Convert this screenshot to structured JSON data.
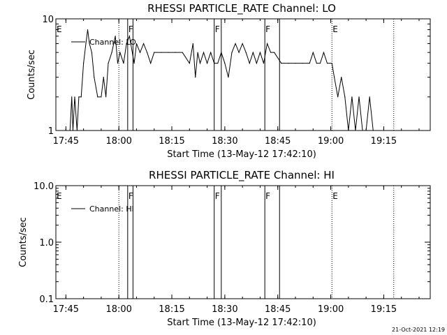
{
  "footer_timestamp": "21-Oct-2021 12:19",
  "chart_data": [
    {
      "type": "line",
      "title": "RHESSI PARTICLE_RATE Channel: LO",
      "xlabel": "Start Time (13-May-12 17:42:10)",
      "ylabel": "Counts/sec",
      "x_range": [
        "17:42:10",
        "19:28:10"
      ],
      "x_ticks": [
        "17:45",
        "18:00",
        "18:15",
        "18:30",
        "18:45",
        "19:00",
        "19:15"
      ],
      "y_scale": "log",
      "y_range": [
        1,
        10
      ],
      "y_ticks": [
        "1",
        "10"
      ],
      "legend": {
        "label": "Channel: LO",
        "placement": "top-left"
      },
      "flag_labels": [
        {
          "text": "E",
          "time": "17:42:10"
        },
        {
          "text": "F",
          "time": "18:02:30"
        },
        {
          "text": "F",
          "time": "18:27:00"
        },
        {
          "text": "F",
          "time": "18:41:20"
        },
        {
          "text": "E",
          "time": "19:00:20"
        }
      ],
      "solid_markers": [
        "18:02:30",
        "18:04:00",
        "18:27:00",
        "18:29:00",
        "18:41:20",
        "18:45:30"
      ],
      "dotted_markers": [
        "18:00:00",
        "19:00:20",
        "19:17:50"
      ],
      "series": [
        {
          "values": [
            [
              "17:46:10",
              1
            ],
            [
              "17:46:40",
              2
            ],
            [
              "17:47:00",
              1
            ],
            [
              "17:47:30",
              2
            ],
            [
              "17:48:10",
              1
            ],
            [
              "17:48:40",
              2
            ],
            [
              "17:49:20",
              2
            ],
            [
              "17:50:00",
              4
            ],
            [
              "17:50:40",
              6
            ],
            [
              "17:51:10",
              8
            ],
            [
              "17:51:40",
              6
            ],
            [
              "17:52:20",
              5
            ],
            [
              "17:53:00",
              3
            ],
            [
              "17:54:00",
              2
            ],
            [
              "17:55:00",
              2
            ],
            [
              "17:55:40",
              3
            ],
            [
              "17:56:20",
              2
            ],
            [
              "17:57:00",
              4
            ],
            [
              "17:58:00",
              5
            ],
            [
              "17:59:00",
              7
            ],
            [
              "17:59:40",
              4
            ],
            [
              "18:00:20",
              5
            ],
            [
              "18:01:20",
              4
            ],
            [
              "18:02:10",
              6
            ],
            [
              "18:03:00",
              7
            ],
            [
              "18:04:20",
              4
            ],
            [
              "18:05:00",
              6
            ],
            [
              "18:06:00",
              5
            ],
            [
              "18:07:00",
              6
            ],
            [
              "18:08:00",
              5
            ],
            [
              "18:09:00",
              4
            ],
            [
              "18:10:00",
              5
            ],
            [
              "18:12:00",
              5
            ],
            [
              "18:14:00",
              5
            ],
            [
              "18:16:00",
              5
            ],
            [
              "18:18:00",
              5
            ],
            [
              "18:20:00",
              4
            ],
            [
              "18:21:00",
              6
            ],
            [
              "18:21:40",
              3
            ],
            [
              "18:22:20",
              5
            ],
            [
              "18:23:00",
              4
            ],
            [
              "18:24:00",
              5
            ],
            [
              "18:25:00",
              4
            ],
            [
              "18:26:00",
              5
            ],
            [
              "18:27:00",
              4
            ],
            [
              "18:28:00",
              4
            ],
            [
              "18:29:00",
              5
            ],
            [
              "18:30:00",
              4
            ],
            [
              "18:31:00",
              3
            ],
            [
              "18:32:00",
              5
            ],
            [
              "18:33:00",
              6
            ],
            [
              "18:34:00",
              5
            ],
            [
              "18:35:00",
              6
            ],
            [
              "18:36:00",
              5
            ],
            [
              "18:37:00",
              4
            ],
            [
              "18:38:00",
              5
            ],
            [
              "18:39:00",
              4
            ],
            [
              "18:40:00",
              5
            ],
            [
              "18:41:00",
              4
            ],
            [
              "18:42:00",
              6
            ],
            [
              "18:43:00",
              5
            ],
            [
              "18:44:00",
              5
            ],
            [
              "18:46:00",
              4
            ],
            [
              "18:48:00",
              4
            ],
            [
              "18:50:00",
              4
            ],
            [
              "18:52:00",
              4
            ],
            [
              "18:54:00",
              4
            ],
            [
              "18:55:00",
              5
            ],
            [
              "18:56:00",
              4
            ],
            [
              "18:57:00",
              4
            ],
            [
              "18:58:00",
              5
            ],
            [
              "18:59:00",
              4
            ],
            [
              "19:00:20",
              4
            ],
            [
              "19:01:00",
              3
            ],
            [
              "19:02:00",
              2
            ],
            [
              "19:03:00",
              3
            ],
            [
              "19:04:00",
              2
            ],
            [
              "19:05:00",
              1
            ],
            [
              "19:06:00",
              2
            ],
            [
              "19:07:00",
              1
            ],
            [
              "19:08:00",
              2
            ],
            [
              "19:09:00",
              1
            ],
            [
              "19:10:00",
              1
            ],
            [
              "19:11:00",
              2
            ],
            [
              "19:12:00",
              1
            ]
          ]
        }
      ]
    },
    {
      "type": "line",
      "title": "RHESSI PARTICLE_RATE Channel: HI",
      "xlabel": "Start Time (13-May-12 17:42:10)",
      "ylabel": "Counts/sec",
      "x_range": [
        "17:42:10",
        "19:28:10"
      ],
      "x_ticks": [
        "17:45",
        "18:00",
        "18:15",
        "18:30",
        "18:45",
        "19:00",
        "19:15"
      ],
      "y_scale": "log",
      "y_range": [
        0.1,
        10
      ],
      "y_ticks": [
        "0.1",
        "1.0",
        "10.0"
      ],
      "legend": {
        "label": "Channel: HI",
        "placement": "top-left"
      },
      "flag_labels": [
        {
          "text": "E",
          "time": "17:42:10"
        },
        {
          "text": "F",
          "time": "18:02:30"
        },
        {
          "text": "F",
          "time": "18:27:00"
        },
        {
          "text": "F",
          "time": "18:41:20"
        },
        {
          "text": "E",
          "time": "19:00:20"
        }
      ],
      "solid_markers": [
        "18:02:30",
        "18:04:00",
        "18:27:00",
        "18:29:00",
        "18:41:20",
        "18:45:30"
      ],
      "dotted_markers": [
        "18:00:00",
        "19:00:20",
        "19:17:50"
      ],
      "series": [
        {
          "values": []
        }
      ]
    }
  ]
}
